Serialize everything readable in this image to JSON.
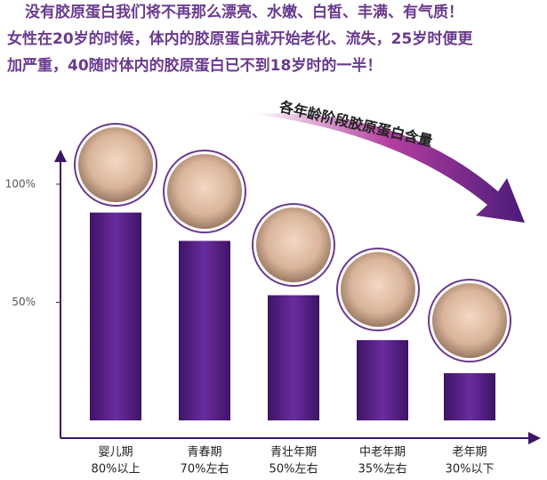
{
  "chart_data": {
    "type": "bar",
    "title_lines": [
      "没有胶原蛋白我们将不再那么漂亮、水嫩、白皙、丰满、有气质！",
      "女性在20岁的时候，体内的胶原蛋白就开始老化、流失，25岁时便更",
      "加严重，40随时体内的胶原蛋白已不到18岁时的一半！"
    ],
    "annotation": "各年龄阶段胶原蛋白含量",
    "categories": [
      "婴儿期",
      "青春期",
      "青壮年期",
      "中老年期",
      "老年期"
    ],
    "category_notes": [
      "80%以上",
      "70%左右",
      "50%左右",
      "35%左右",
      "30%以下"
    ],
    "values": [
      88,
      76,
      53,
      34,
      20
    ],
    "color": "#4e1d80",
    "ylim": [
      -7.5,
      112
    ],
    "yticks": [
      {
        "value": 50,
        "label": "50%"
      },
      {
        "value": 100,
        "label": "100%"
      }
    ]
  }
}
